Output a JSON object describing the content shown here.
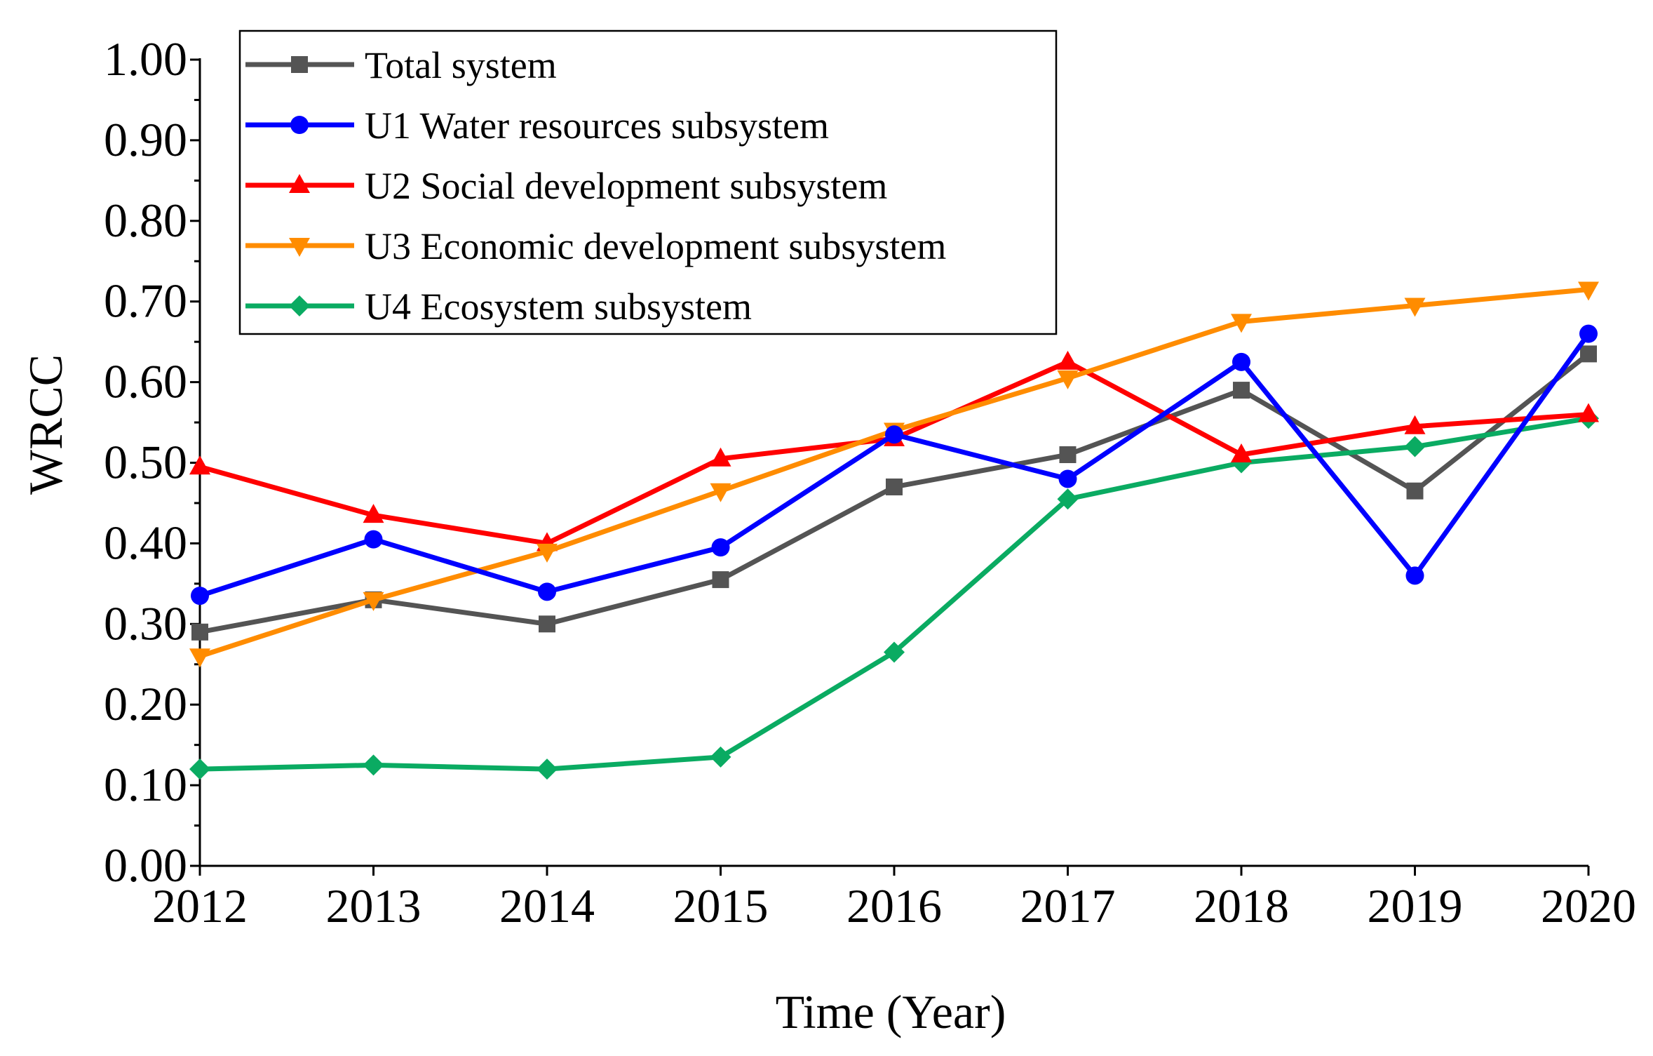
{
  "chart_data": {
    "type": "line",
    "title": "",
    "xlabel": "Time (Year)",
    "ylabel": "WRCC",
    "categories": [
      "2012",
      "2013",
      "2014",
      "2015",
      "2016",
      "2017",
      "2018",
      "2019",
      "2020"
    ],
    "ylim": [
      0,
      1
    ],
    "y_ticks": [
      "0.00",
      "0.10",
      "0.20",
      "0.30",
      "0.40",
      "0.50",
      "0.60",
      "0.70",
      "0.80",
      "0.90",
      "1.00"
    ],
    "grid": false,
    "legend_position": "top-left",
    "series": [
      {
        "name": "Total system",
        "color": "#545454",
        "marker": "square",
        "values": [
          0.29,
          0.33,
          0.3,
          0.355,
          0.47,
          0.51,
          0.59,
          0.465,
          0.635
        ]
      },
      {
        "name": "U1 Water resources subsystem",
        "color": "#0000ff",
        "marker": "circle",
        "values": [
          0.335,
          0.405,
          0.34,
          0.395,
          0.535,
          0.48,
          0.625,
          0.36,
          0.66
        ]
      },
      {
        "name": "U2 Social development subsystem",
        "color": "#ff0000",
        "marker": "triangle-up",
        "values": [
          0.495,
          0.435,
          0.4,
          0.505,
          0.53,
          0.625,
          0.51,
          0.545,
          0.56
        ]
      },
      {
        "name": "U3 Economic development subsystem",
        "color": "#ff8c00",
        "marker": "triangle-down",
        "values": [
          0.26,
          0.33,
          0.39,
          0.465,
          0.54,
          0.605,
          0.675,
          0.695,
          0.715
        ]
      },
      {
        "name": "U4 Ecosystem subsystem",
        "color": "#0aab62",
        "marker": "diamond",
        "values": [
          0.12,
          0.125,
          0.12,
          0.135,
          0.265,
          0.455,
          0.5,
          0.52,
          0.555
        ]
      }
    ]
  }
}
